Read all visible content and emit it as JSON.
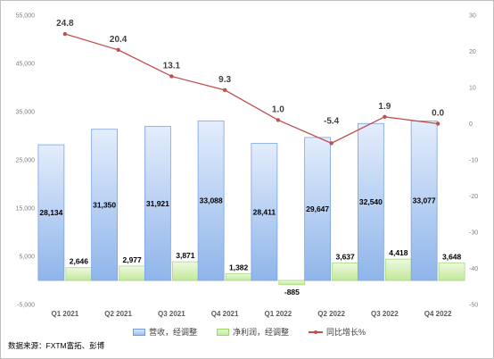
{
  "chart_data": {
    "type": "bar",
    "categories": [
      "Q1 2021",
      "Q2 2021",
      "Q3 2021",
      "Q4 2021",
      "Q1 2022",
      "Q2 2022",
      "Q3 2022",
      "Q4 2022"
    ],
    "series": [
      {
        "name": "营收，经调整",
        "type": "bar",
        "axis": "left",
        "values": [
          28134,
          31350,
          31921,
          33088,
          28411,
          29647,
          32540,
          33077
        ],
        "labels": [
          "28,134",
          "31,350",
          "31,921",
          "33,088",
          "28,411",
          "29,647",
          "32,540",
          "33,077"
        ],
        "color": "#8eb4e8"
      },
      {
        "name": "净利润，经调整",
        "type": "bar",
        "axis": "left",
        "values": [
          2646,
          2977,
          3871,
          1382,
          -885,
          3637,
          4418,
          3648
        ],
        "labels": [
          "2,646",
          "2,977",
          "3,871",
          "1,382",
          "-885",
          "3,637",
          "4,418",
          "3,648"
        ],
        "color": "#c6eaa0"
      },
      {
        "name": "同比增长%",
        "type": "line",
        "axis": "right",
        "values": [
          24.8,
          20.4,
          13.1,
          9.3,
          1.0,
          -5.4,
          1.9,
          0.0
        ],
        "labels": [
          "24.8",
          "20.4",
          "13.1",
          "9.3",
          "1.0",
          "-5.4",
          "1.9",
          "0.0"
        ],
        "color": "#c0504d"
      }
    ],
    "y_left": {
      "range": [
        -5000,
        55000
      ],
      "ticks": [
        "-5,000",
        "5,000",
        "15,000",
        "25,000",
        "35,000",
        "45,000",
        "55,000"
      ],
      "tick_values": [
        -5000,
        5000,
        15000,
        25000,
        35000,
        45000,
        55000
      ]
    },
    "y_right": {
      "range": [
        -50,
        30
      ],
      "ticks": [
        "-50",
        "-40",
        "-30",
        "-20",
        "-10",
        "0",
        "10",
        "20",
        "30"
      ],
      "tick_values": [
        -50,
        -40,
        -30,
        -20,
        -10,
        0,
        10,
        20,
        30
      ]
    },
    "negative_label_color": "#ff0000",
    "legend_position": "bottom",
    "grid": false
  },
  "source": "数据来源：FXTM富拓、彭博"
}
